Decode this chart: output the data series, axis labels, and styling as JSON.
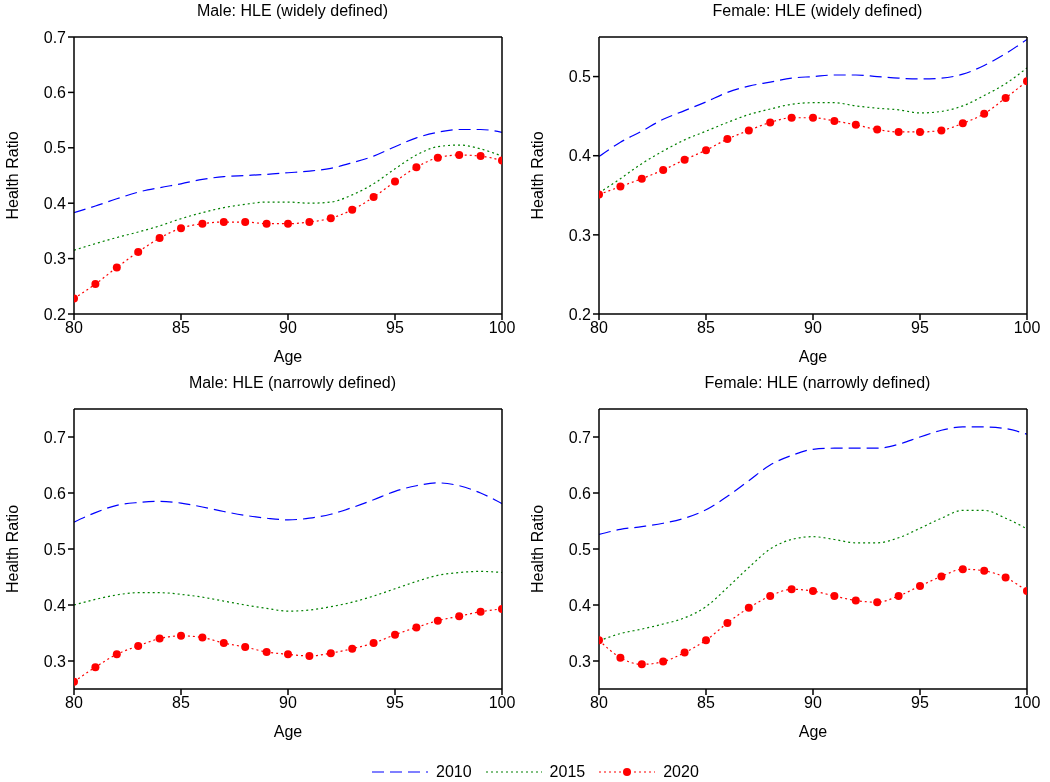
{
  "chart_data": [
    {
      "type": "line",
      "title": "Male: HLE (widely defined)",
      "xlabel": "Age",
      "ylabel": "Health Ratio",
      "x": [
        80,
        81,
        82,
        83,
        84,
        85,
        86,
        87,
        88,
        89,
        90,
        91,
        92,
        93,
        94,
        95,
        96,
        97,
        98,
        99,
        100
      ],
      "xlim": [
        80,
        100
      ],
      "xticks": [
        80,
        85,
        90,
        95,
        100
      ],
      "ylim": [
        0.2,
        0.7
      ],
      "yticks": [
        0.2,
        0.3,
        0.4,
        0.5,
        0.6,
        0.7
      ],
      "grid": false,
      "series": [
        {
          "color": "#0000ff",
          "line_style": "dashed",
          "marker": "none",
          "values": [
            0.383,
            0.395,
            0.408,
            0.42,
            0.428,
            0.435,
            0.443,
            0.448,
            0.45,
            0.452,
            0.455,
            0.458,
            0.463,
            0.473,
            0.485,
            0.502,
            0.518,
            0.528,
            0.533,
            0.533,
            0.528
          ]
        },
        {
          "color": "#008000",
          "line_style": "dotted",
          "marker": "none",
          "values": [
            0.315,
            0.327,
            0.338,
            0.348,
            0.359,
            0.372,
            0.383,
            0.392,
            0.398,
            0.402,
            0.402,
            0.4,
            0.402,
            0.415,
            0.435,
            0.462,
            0.487,
            0.502,
            0.505,
            0.498,
            0.485
          ]
        },
        {
          "color": "#ff0000",
          "line_style": "dotted",
          "marker": "circle",
          "values": [
            0.228,
            0.254,
            0.284,
            0.312,
            0.337,
            0.355,
            0.363,
            0.366,
            0.366,
            0.363,
            0.363,
            0.366,
            0.373,
            0.388,
            0.411,
            0.439,
            0.465,
            0.482,
            0.487,
            0.485,
            0.477
          ]
        }
      ]
    },
    {
      "type": "line",
      "title": "Female: HLE (widely defined)",
      "xlabel": "Age",
      "ylabel": "Health Ratio",
      "x": [
        80,
        81,
        82,
        83,
        84,
        85,
        86,
        87,
        88,
        89,
        90,
        91,
        92,
        93,
        94,
        95,
        96,
        97,
        98,
        99,
        100
      ],
      "xlim": [
        80,
        100
      ],
      "xticks": [
        80,
        85,
        90,
        95,
        100
      ],
      "ylim": [
        0.2,
        0.55
      ],
      "yticks": [
        0.2,
        0.3,
        0.4,
        0.5
      ],
      "grid": false,
      "series": [
        {
          "color": "#0000ff",
          "line_style": "dashed",
          "marker": "none",
          "values": [
            0.399,
            0.417,
            0.431,
            0.446,
            0.457,
            0.468,
            0.48,
            0.488,
            0.493,
            0.498,
            0.5,
            0.502,
            0.502,
            0.5,
            0.498,
            0.497,
            0.498,
            0.503,
            0.514,
            0.529,
            0.547
          ]
        },
        {
          "color": "#008000",
          "line_style": "dotted",
          "marker": "none",
          "values": [
            0.353,
            0.371,
            0.39,
            0.406,
            0.42,
            0.431,
            0.442,
            0.452,
            0.459,
            0.465,
            0.467,
            0.467,
            0.463,
            0.46,
            0.458,
            0.454,
            0.456,
            0.463,
            0.476,
            0.491,
            0.511
          ]
        },
        {
          "color": "#ff0000",
          "line_style": "dotted",
          "marker": "circle",
          "values": [
            0.351,
            0.361,
            0.371,
            0.382,
            0.395,
            0.407,
            0.421,
            0.432,
            0.442,
            0.448,
            0.448,
            0.444,
            0.439,
            0.433,
            0.43,
            0.43,
            0.432,
            0.441,
            0.453,
            0.473,
            0.494
          ]
        }
      ]
    },
    {
      "type": "line",
      "title": "Male: HLE (narrowly defined)",
      "xlabel": "Age",
      "ylabel": "Health Ratio",
      "x": [
        80,
        81,
        82,
        83,
        84,
        85,
        86,
        87,
        88,
        89,
        90,
        91,
        92,
        93,
        94,
        95,
        96,
        97,
        98,
        99,
        100
      ],
      "xlim": [
        80,
        100
      ],
      "xticks": [
        80,
        85,
        90,
        95,
        100
      ],
      "ylim": [
        0.25,
        0.75
      ],
      "yticks": [
        0.3,
        0.4,
        0.5,
        0.6,
        0.7
      ],
      "grid": false,
      "series": [
        {
          "color": "#0000ff",
          "line_style": "dashed",
          "marker": "none",
          "values": [
            0.548,
            0.565,
            0.578,
            0.583,
            0.585,
            0.582,
            0.575,
            0.567,
            0.56,
            0.555,
            0.552,
            0.555,
            0.562,
            0.574,
            0.588,
            0.603,
            0.613,
            0.618,
            0.613,
            0.6,
            0.581
          ]
        },
        {
          "color": "#008000",
          "line_style": "dotted",
          "marker": "none",
          "values": [
            0.4,
            0.41,
            0.418,
            0.422,
            0.422,
            0.419,
            0.414,
            0.407,
            0.4,
            0.394,
            0.389,
            0.391,
            0.397,
            0.405,
            0.416,
            0.429,
            0.442,
            0.453,
            0.458,
            0.46,
            0.458
          ]
        },
        {
          "color": "#ff0000",
          "line_style": "dotted",
          "marker": "circle",
          "values": [
            0.263,
            0.289,
            0.312,
            0.327,
            0.34,
            0.345,
            0.342,
            0.332,
            0.325,
            0.316,
            0.312,
            0.309,
            0.314,
            0.322,
            0.332,
            0.347,
            0.36,
            0.372,
            0.38,
            0.388,
            0.393
          ]
        }
      ]
    },
    {
      "type": "line",
      "title": "Female: HLE (narrowly defined)",
      "xlabel": "Age",
      "ylabel": "Health Ratio",
      "x": [
        80,
        81,
        82,
        83,
        84,
        85,
        86,
        87,
        88,
        89,
        90,
        91,
        92,
        93,
        94,
        95,
        96,
        97,
        98,
        99,
        100
      ],
      "xlim": [
        80,
        100
      ],
      "xticks": [
        80,
        85,
        90,
        95,
        100
      ],
      "ylim": [
        0.25,
        0.75
      ],
      "yticks": [
        0.3,
        0.4,
        0.5,
        0.6,
        0.7
      ],
      "grid": false,
      "legend": "bottom",
      "series": [
        {
          "name": "2010",
          "color": "#0000ff",
          "line_style": "dashed",
          "marker": "none",
          "values": [
            0.526,
            0.535,
            0.54,
            0.546,
            0.555,
            0.57,
            0.594,
            0.622,
            0.65,
            0.667,
            0.678,
            0.68,
            0.68,
            0.68,
            0.687,
            0.7,
            0.712,
            0.718,
            0.718,
            0.715,
            0.705
          ]
        },
        {
          "name": "2015",
          "color": "#008000",
          "line_style": "dotted",
          "marker": "none",
          "values": [
            0.336,
            0.349,
            0.357,
            0.366,
            0.377,
            0.397,
            0.431,
            0.467,
            0.5,
            0.517,
            0.522,
            0.517,
            0.511,
            0.511,
            0.52,
            0.537,
            0.555,
            0.569,
            0.569,
            0.555,
            0.536
          ]
        },
        {
          "name": "2020",
          "color": "#ff0000",
          "line_style": "dotted",
          "marker": "circle",
          "values": [
            0.337,
            0.306,
            0.294,
            0.299,
            0.315,
            0.337,
            0.368,
            0.395,
            0.416,
            0.428,
            0.425,
            0.416,
            0.408,
            0.405,
            0.416,
            0.434,
            0.451,
            0.464,
            0.461,
            0.449,
            0.425
          ]
        }
      ]
    }
  ]
}
